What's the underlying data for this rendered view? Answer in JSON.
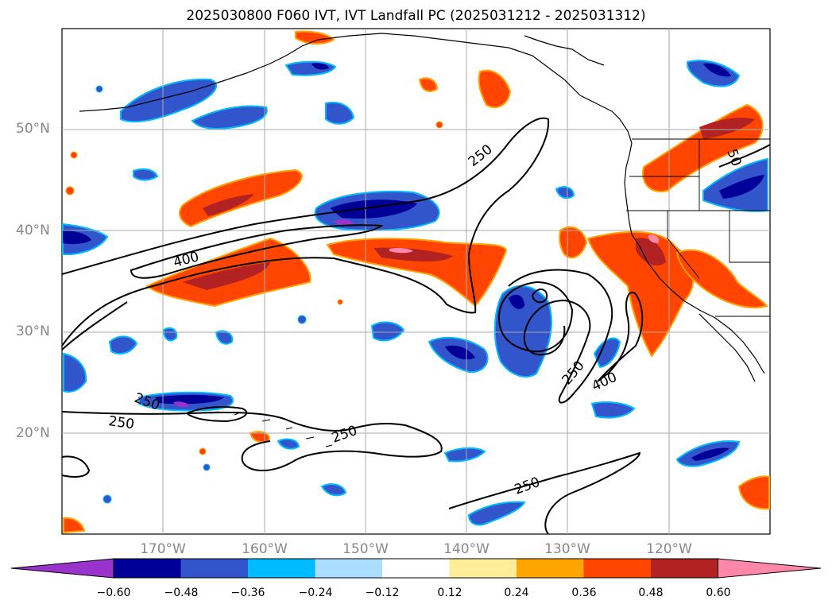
{
  "title": "2025030800 F060 IVT, IVT Landfall PC (2025031212 - 2025031312)",
  "latitude_labels": [
    "50°N",
    "40°N",
    "30°N",
    "20°N"
  ],
  "longitude_labels": [
    "170°W",
    "160°W",
    "150°W",
    "140°W",
    "130°W",
    "120°W"
  ],
  "contour_labels": [
    "250",
    "400",
    "250",
    "250",
    "250",
    "250",
    "400",
    "250",
    "50"
  ],
  "colorbar": {
    "ticks": [
      "−0.60",
      "−0.48",
      "−0.36",
      "−0.24",
      "−0.12",
      "0.12",
      "0.24",
      "0.36",
      "0.48",
      "0.60"
    ],
    "bin_colors": [
      "#9933cc",
      "#000099",
      "#3355cc",
      "#00bbff",
      "#aaddff",
      "#ffffff",
      "#ffee99",
      "#ffa500",
      "#ff4500",
      "#b22222",
      "#ff88aa"
    ]
  },
  "colors": {
    "contour": "#000000",
    "coastline": "#000000",
    "grid": "#aaaaaa",
    "tick_label": "#888888"
  }
}
